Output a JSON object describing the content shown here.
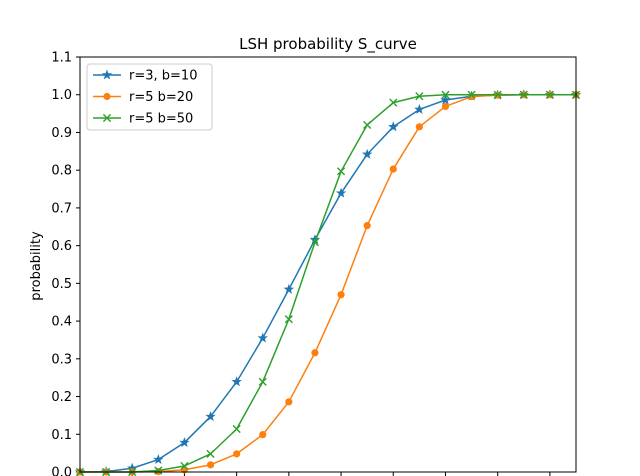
{
  "chart_data": {
    "type": "line",
    "title": "LSH probability S_curve",
    "xlabel": "",
    "ylabel": "probability",
    "xlim": [
      0.0,
      0.95
    ],
    "ylim": [
      0.0,
      1.1
    ],
    "grid": false,
    "legend_position": "top-left",
    "yticks": [
      0.0,
      0.1,
      0.2,
      0.3,
      0.4,
      0.5,
      0.6,
      0.7,
      0.8,
      0.9,
      1.0,
      1.1
    ],
    "ytick_labels": [
      "0.0",
      "0.1",
      "0.2",
      "0.3",
      "0.4",
      "0.5",
      "0.6",
      "0.7",
      "0.8",
      "0.9",
      "1.0",
      "1.1"
    ],
    "xticks": [
      0.1,
      0.2,
      0.3,
      0.4,
      0.5,
      0.6,
      0.7,
      0.8,
      0.9
    ],
    "x": [
      0.0,
      0.05,
      0.1,
      0.15,
      0.2,
      0.25,
      0.3,
      0.35,
      0.4,
      0.45,
      0.5,
      0.55,
      0.6,
      0.65,
      0.7,
      0.75,
      0.8,
      0.85,
      0.9,
      0.95
    ],
    "series": [
      {
        "name": "r=3, b=10",
        "color": "#1f77b4",
        "marker": "star",
        "values": [
          0.0,
          0.001,
          0.01,
          0.033,
          0.078,
          0.147,
          0.239,
          0.355,
          0.484,
          0.616,
          0.739,
          0.842,
          0.915,
          0.961,
          0.986,
          0.996,
          0.999,
          1.0,
          1.0,
          1.0
        ]
      },
      {
        "name": "r=5 b=20",
        "color": "#ff7f0e",
        "marker": "circle",
        "values": [
          0.0,
          0.0,
          0.0,
          0.001,
          0.006,
          0.019,
          0.048,
          0.099,
          0.186,
          0.316,
          0.47,
          0.653,
          0.803,
          0.915,
          0.969,
          0.995,
          0.999,
          1.0,
          1.0,
          1.0
        ]
      },
      {
        "name": "r=5 b=50",
        "color": "#2ca02c",
        "marker": "x",
        "values": [
          0.0,
          0.0,
          0.0,
          0.004,
          0.016,
          0.048,
          0.114,
          0.239,
          0.405,
          0.609,
          0.797,
          0.92,
          0.979,
          0.996,
          1.0,
          1.0,
          1.0,
          1.0,
          1.0,
          1.0
        ]
      }
    ]
  }
}
